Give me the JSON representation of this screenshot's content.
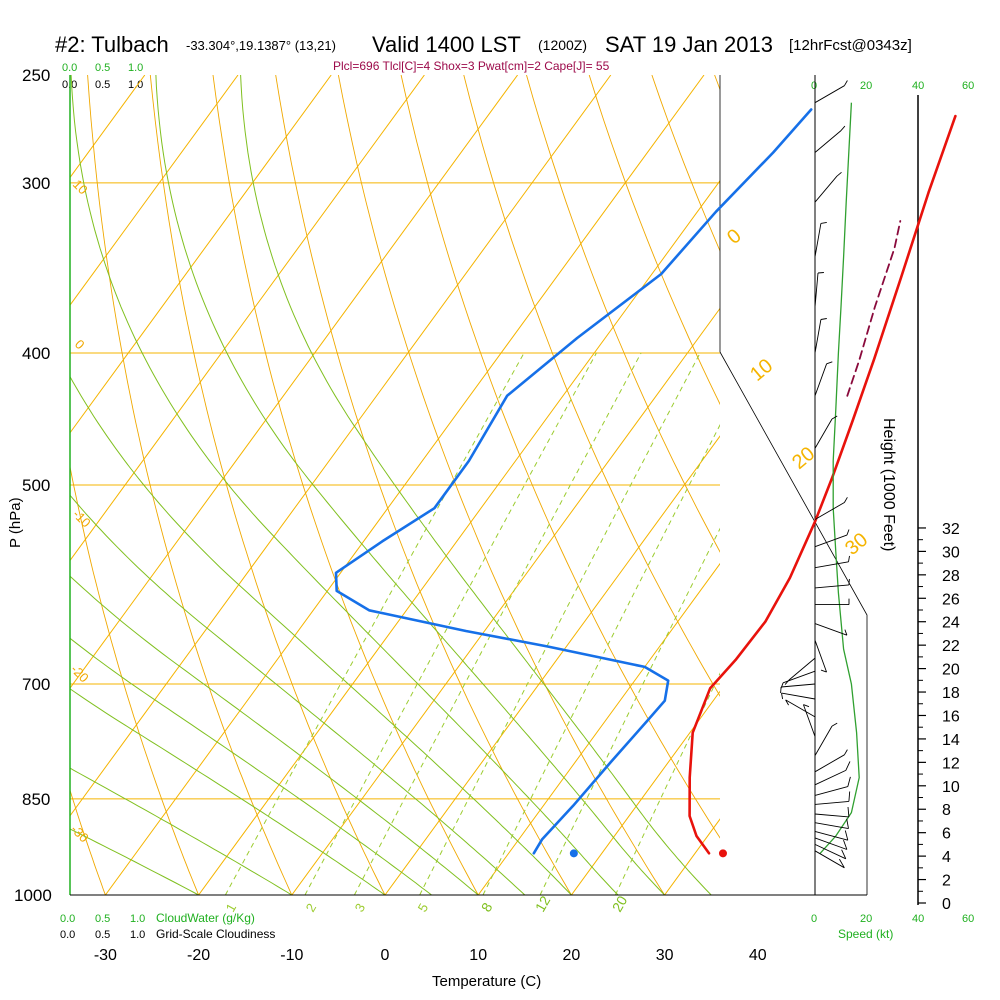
{
  "header": {
    "station": "#2: Tulbach",
    "coords": "-33.304°,19.1387° (13,21)",
    "valid": "Valid 1400 LST",
    "zulu": "(1200Z)",
    "date": "SAT 19 Jan 2013",
    "forecast": "[12hrFcst@0343z]"
  },
  "indices_line": "Plcl=696 Tlcl[C]=4 Shox=3 Pwat[cm]=2 Cape[J]= 55",
  "cloud_scales": {
    "top_green": [
      "0.0",
      "0.5",
      "1.0"
    ],
    "top_black": [
      "0.0",
      "0.5",
      "1.0"
    ],
    "bottom_green": [
      "0.0",
      "0.5",
      "1.0"
    ],
    "bottom_green_label": "CloudWater (g/Kg)",
    "bottom_black": [
      "0.0",
      "0.5",
      "1.0"
    ],
    "bottom_black_label": "Grid-Scale Cloudiness"
  },
  "speed_scale": {
    "ticks": [
      "0",
      "20",
      "40",
      "60"
    ],
    "label": "Speed (kt)"
  },
  "colors": {
    "isotherm": "#f5b400",
    "dry_adiabat": "#f0a800",
    "moist_adiabat": "#80c020",
    "mixing_ratio": "#9ccc30",
    "temperature": "#e8120c",
    "dewpoint": "#1670e8",
    "parcel": "#8a0a3c",
    "indices": "#9c0a4a",
    "green_text": "#20b020",
    "wind_speed": "#30a030"
  },
  "chart_data": {
    "type": "line",
    "diagram": "skew-T log-P",
    "xlabel": "Temperature (C)",
    "ylabel": "P (hPa)",
    "right_label": "Height (1000 Feet)",
    "x_ticks": [
      -30,
      -20,
      -10,
      0,
      10,
      20,
      30,
      40
    ],
    "p_ticks": [
      250,
      300,
      400,
      500,
      700,
      850,
      1000
    ],
    "height_ticks_kft": [
      0,
      2,
      4,
      6,
      8,
      10,
      12,
      14,
      16,
      18,
      20,
      22,
      24,
      26,
      28,
      30,
      32
    ],
    "isotherm_labels": [
      "0",
      "10",
      "20",
      "30"
    ],
    "dry_adiabat_labels": [
      "10",
      "0",
      "-10",
      "-20",
      "-30"
    ],
    "moist_adiabat_labels": [
      "8",
      "12",
      "20"
    ],
    "mixing_ratio_labels": [
      "1",
      "2",
      "3",
      "5"
    ],
    "series": [
      {
        "name": "Temperature",
        "points": [
          [
            31.5,
            932
          ],
          [
            28.8,
            905
          ],
          [
            26.5,
            875
          ],
          [
            23.5,
            820
          ],
          [
            20.3,
            760
          ],
          [
            18.7,
            705
          ],
          [
            19.2,
            672
          ],
          [
            19.4,
            630
          ],
          [
            18.6,
            585
          ],
          [
            16.9,
            532
          ],
          [
            15.3,
            494
          ],
          [
            13.0,
            448
          ],
          [
            10.5,
            404
          ],
          [
            7.0,
            352
          ],
          [
            3.3,
            305
          ],
          [
            0.2,
            268
          ]
        ]
      },
      {
        "name": "Dewpoint",
        "points": [
          [
            12.7,
            932
          ],
          [
            12.5,
            910
          ],
          [
            13.2,
            860
          ],
          [
            13.8,
            800
          ],
          [
            14.5,
            745
          ],
          [
            14.8,
            720
          ],
          [
            13.6,
            696
          ],
          [
            10.0,
            680
          ],
          [
            -2.0,
            657
          ],
          [
            -12.0,
            640
          ],
          [
            -24.0,
            618
          ],
          [
            -29.0,
            598
          ],
          [
            -30.5,
            580
          ],
          [
            -28.0,
            550
          ],
          [
            -25.0,
            520
          ],
          [
            -25.0,
            480
          ],
          [
            -26.0,
            430
          ],
          [
            -23.0,
            390
          ],
          [
            -19.0,
            350
          ],
          [
            -18.0,
            315
          ],
          [
            -16.5,
            285
          ],
          [
            -15.8,
            265
          ]
        ]
      },
      {
        "name": "Parcel",
        "points": [
          [
            10.5,
            430
          ],
          [
            9.0,
            405
          ],
          [
            6.5,
            370
          ],
          [
            4.0,
            335
          ],
          [
            2.5,
            320
          ]
        ]
      }
    ],
    "surface_markers": {
      "temperature": {
        "t": 33.0,
        "p": 932
      },
      "dewpoint": {
        "t": 17.0,
        "p": 932
      }
    },
    "wind_speed_kt": [
      [
        2,
        932
      ],
      [
        8,
        905
      ],
      [
        14,
        870
      ],
      [
        17,
        820
      ],
      [
        16,
        760
      ],
      [
        14,
        700
      ],
      [
        11,
        660
      ],
      [
        9,
        600
      ],
      [
        8,
        560
      ],
      [
        7,
        520
      ],
      [
        7,
        480
      ],
      [
        8,
        440
      ],
      [
        9,
        400
      ],
      [
        10,
        370
      ],
      [
        11,
        340
      ],
      [
        12,
        310
      ],
      [
        13,
        285
      ],
      [
        14,
        262
      ]
    ],
    "wind_barbs": [
      {
        "p": 928,
        "speed": 10,
        "dir": 240
      },
      {
        "p": 918,
        "speed": 10,
        "dir": 245
      },
      {
        "p": 908,
        "speed": 10,
        "dir": 250
      },
      {
        "p": 898,
        "speed": 10,
        "dir": 255
      },
      {
        "p": 885,
        "speed": 10,
        "dir": 260
      },
      {
        "p": 872,
        "speed": 10,
        "dir": 265
      },
      {
        "p": 858,
        "speed": 10,
        "dir": 275
      },
      {
        "p": 845,
        "speed": 10,
        "dir": 285
      },
      {
        "p": 830,
        "speed": 10,
        "dir": 295
      },
      {
        "p": 812,
        "speed": 5,
        "dir": 300
      },
      {
        "p": 790,
        "speed": 5,
        "dir": 330
      },
      {
        "p": 765,
        "speed": 5,
        "dir": 20
      },
      {
        "p": 740,
        "speed": 5,
        "dir": 60
      },
      {
        "p": 718,
        "speed": 5,
        "dir": 80
      },
      {
        "p": 700,
        "speed": 5,
        "dir": 95
      },
      {
        "p": 685,
        "speed": 5,
        "dir": 110
      },
      {
        "p": 670,
        "speed": 5,
        "dir": 130
      },
      {
        "p": 650,
        "speed": 5,
        "dir": 200
      },
      {
        "p": 632,
        "speed": 5,
        "dir": 250
      },
      {
        "p": 612,
        "speed": 5,
        "dir": 270
      },
      {
        "p": 595,
        "speed": 5,
        "dir": 275
      },
      {
        "p": 575,
        "speed": 5,
        "dir": 280
      },
      {
        "p": 555,
        "speed": 5,
        "dir": 290
      },
      {
        "p": 530,
        "speed": 5,
        "dir": 300
      },
      {
        "p": 470,
        "speed": 5,
        "dir": 330
      },
      {
        "p": 430,
        "speed": 5,
        "dir": 340
      },
      {
        "p": 400,
        "speed": 5,
        "dir": 350
      },
      {
        "p": 370,
        "speed": 5,
        "dir": 355
      },
      {
        "p": 340,
        "speed": 5,
        "dir": 350
      },
      {
        "p": 310,
        "speed": 5,
        "dir": 320
      },
      {
        "p": 285,
        "speed": 5,
        "dir": 310
      },
      {
        "p": 262,
        "speed": 5,
        "dir": 300
      }
    ]
  }
}
